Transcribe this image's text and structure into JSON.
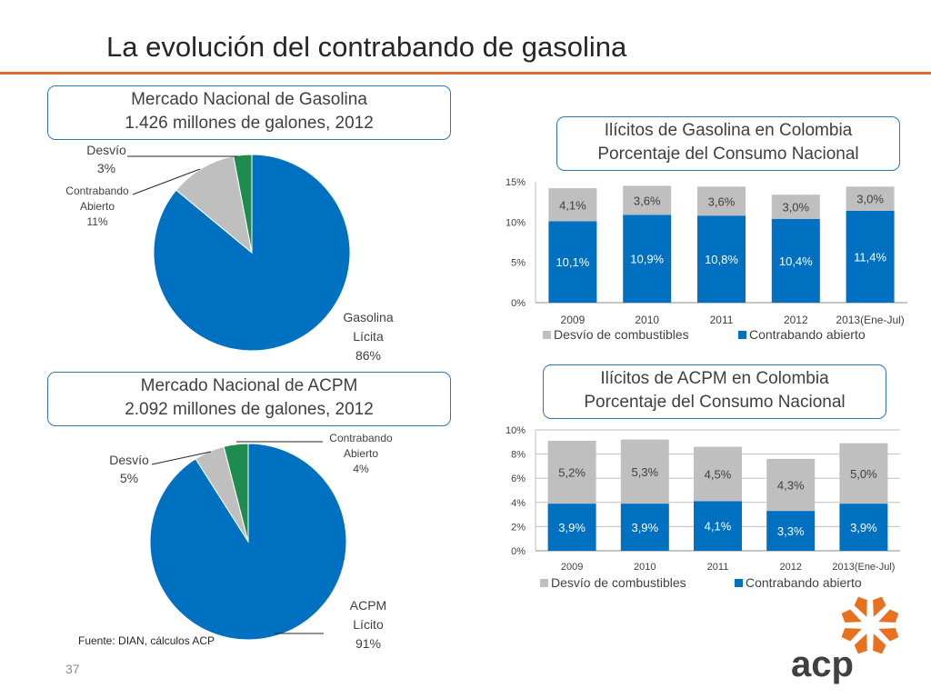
{
  "title": "La evolución del contrabando de gasolina",
  "page_number": "37",
  "source_note": "Fuente: DIAN, cálculos ACP",
  "logo_text": "acp",
  "colors": {
    "blue": "#0070c0",
    "gray": "#bfbfbf",
    "green": "#1e8c4e",
    "orange": "#e8711f",
    "title_rule": "#d96c2c"
  },
  "pie1_box": {
    "line1": "Mercado Nacional de  Gasolina",
    "line2": "1.426 millones de galones, 2012"
  },
  "pie2_box": {
    "line1": "Mercado Nacional de  ACPM",
    "line2": "2.092 millones de galones, 2012"
  },
  "bar1_box": {
    "line1": "Ilícitos de Gasolina en Colombia",
    "line2": "Porcentaje del Consumo Nacional"
  },
  "bar2_box": {
    "line1": "Ilícitos de ACPM en Colombia",
    "line2": "Porcentaje del Consumo Nacional"
  },
  "chart_data": [
    {
      "type": "pie",
      "title": "Mercado Nacional de  Gasolina 1.426 millones de galones, 2012",
      "slices": [
        {
          "label": [
            "Gasolina",
            "Lícita",
            "86%"
          ],
          "value": 86,
          "color": "#0070c0"
        },
        {
          "label": [
            "Contrabando",
            "Abierto",
            "11%"
          ],
          "value": 11,
          "color": "#bfbfbf"
        },
        {
          "label": [
            "Desvío",
            "3%"
          ],
          "value": 3,
          "color": "#1e8c4e"
        }
      ]
    },
    {
      "type": "pie",
      "title": "Mercado Nacional de  ACPM 2.092 millones de galones, 2012",
      "slices": [
        {
          "label": [
            "ACPM",
            "Lícito",
            "91%"
          ],
          "value": 91,
          "color": "#0070c0"
        },
        {
          "label": [
            "Desvío",
            "5%"
          ],
          "value": 5,
          "color": "#bfbfbf"
        },
        {
          "label": [
            "Contrabando",
            "Abierto",
            "4%"
          ],
          "value": 4,
          "color": "#1e8c4e"
        }
      ]
    },
    {
      "type": "bar",
      "stacked": true,
      "title": "Ilícitos de Gasolina en Colombia Porcentaje del Consumo Nacional",
      "categories": [
        "2009",
        "2010",
        "2011",
        "2012",
        "2013(Ene-Jul)"
      ],
      "series": [
        {
          "name": "Contrabando abierto",
          "values": [
            10.1,
            10.9,
            10.8,
            10.4,
            11.4
          ],
          "labels": [
            "10,1%",
            "10,9%",
            "10,8%",
            "10,4%",
            "11,4%"
          ],
          "color": "#0070c0"
        },
        {
          "name": "Desvío de combustibles",
          "values": [
            4.1,
            3.6,
            3.6,
            3.0,
            3.0
          ],
          "labels": [
            "4,1%",
            "3,6%",
            "3,6%",
            "3,0%",
            "3,0%"
          ],
          "color": "#bfbfbf"
        }
      ],
      "ylim": [
        0,
        15
      ],
      "yticks": [
        "0%",
        "5%",
        "10%",
        "15%"
      ],
      "grid": false,
      "legend": "bottom",
      "legend_order": [
        "Desvío de combustibles",
        "Contrabando abierto"
      ]
    },
    {
      "type": "bar",
      "stacked": true,
      "title": "Ilícitos de ACPM en Colombia Porcentaje del Consumo Nacional",
      "categories": [
        "2009",
        "2010",
        "2011",
        "2012",
        "2013(Ene-Jul)"
      ],
      "series": [
        {
          "name": "Contrabando abierto",
          "values": [
            3.9,
            3.9,
            4.1,
            3.3,
            3.9
          ],
          "labels": [
            "3,9%",
            "3,9%",
            "4,1%",
            "3,3%",
            "3,9%"
          ],
          "color": "#0070c0"
        },
        {
          "name": "Desvío de combustibles",
          "values": [
            5.2,
            5.3,
            4.5,
            4.3,
            5.0
          ],
          "labels": [
            "5,2%",
            "5,3%",
            "4,5%",
            "4,3%",
            "5,0%"
          ],
          "color": "#bfbfbf"
        }
      ],
      "ylim": [
        0,
        10
      ],
      "yticks": [
        "0%",
        "2%",
        "4%",
        "6%",
        "8%",
        "10%"
      ],
      "grid": true,
      "legend": "bottom",
      "legend_order": [
        "Desvío de combustibles",
        "Contrabando abierto"
      ]
    }
  ]
}
